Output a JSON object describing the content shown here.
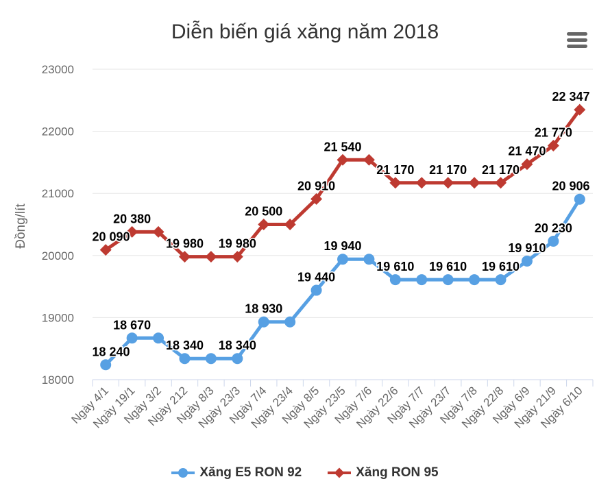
{
  "header": {
    "title": "Diễn biến giá xăng năm 2018",
    "menu_icon": "hamburger-menu-icon"
  },
  "chart_data": {
    "type": "line",
    "title": "Diễn biến giá xăng năm 2018",
    "xlabel": "",
    "ylabel": "Đồng/lít",
    "ylim": [
      18000,
      23000
    ],
    "yticks": [
      18000,
      19000,
      20000,
      21000,
      22000,
      23000
    ],
    "grid": true,
    "legend_position": "bottom",
    "categories": [
      "Ngày 4/1",
      "Ngày 19/1",
      "Ngày 3/2",
      "Ngày 212",
      "Ngày 8/3",
      "Ngày 23/3",
      "Ngày 7/4",
      "Ngày 23/4",
      "Ngày 8/5",
      "Ngày 23/5",
      "Ngày 7/6",
      "Ngày 22/6",
      "Ngày 7/7",
      "Ngày 23/7",
      "Ngày 7/8",
      "Ngày 22/8",
      "Ngày 6/9",
      "Ngày 21/9",
      "Ngày 6/10"
    ],
    "series": [
      {
        "name": "Xăng E5 RON 92",
        "color": "#57a0e3",
        "marker": "circle",
        "values": [
          18240,
          18670,
          18670,
          18340,
          18340,
          18340,
          18930,
          18930,
          19440,
          19940,
          19940,
          19610,
          19610,
          19610,
          19610,
          19610,
          19910,
          20230,
          20906
        ],
        "labels_shown": [
          1,
          1,
          0,
          1,
          0,
          1,
          1,
          0,
          1,
          1,
          0,
          1,
          0,
          1,
          0,
          1,
          1,
          1,
          1
        ]
      },
      {
        "name": "Xăng RON 95",
        "color": "#be3a31",
        "marker": "diamond",
        "values": [
          20090,
          20380,
          20380,
          19980,
          19980,
          19980,
          20500,
          20500,
          20910,
          21540,
          21540,
          21170,
          21170,
          21170,
          21170,
          21170,
          21470,
          21770,
          22347
        ],
        "labels_shown": [
          1,
          1,
          0,
          1,
          0,
          1,
          1,
          0,
          1,
          1,
          0,
          1,
          0,
          1,
          0,
          1,
          1,
          1,
          1
        ]
      }
    ],
    "colors": {
      "background": "#ffffff",
      "grid": "#e6e6e6",
      "axis": "#ccd6eb",
      "axis_label": "#666666",
      "data_label": "#000000",
      "title": "#333333",
      "menu_icon": "#666666"
    }
  }
}
